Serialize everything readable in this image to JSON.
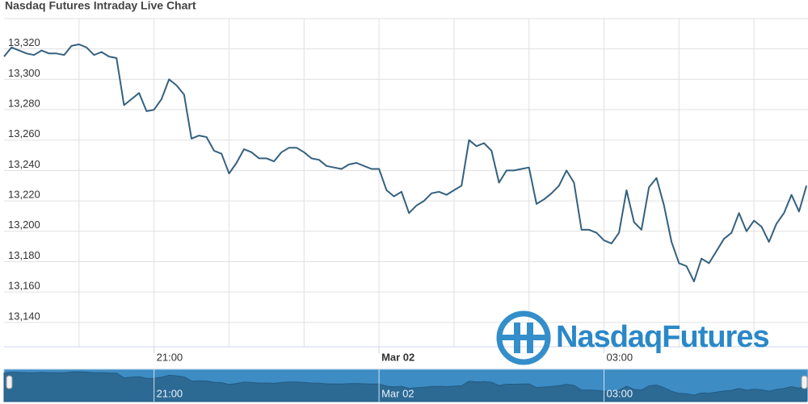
{
  "chart_data": {
    "type": "line",
    "title": "Nasdaq Futures Intraday Live Chart",
    "watermark": "NasdaqFutures",
    "x": [
      19.0,
      19.1,
      19.2,
      19.3,
      19.4,
      19.5,
      19.6,
      19.7,
      19.8,
      19.9,
      20.0,
      20.1,
      20.2,
      20.3,
      20.4,
      20.5,
      20.6,
      20.7,
      20.8,
      20.9,
      21.0,
      21.1,
      21.2,
      21.3,
      21.4,
      21.5,
      21.6,
      21.7,
      21.8,
      21.9,
      22.0,
      22.1,
      22.2,
      22.3,
      22.4,
      22.5,
      22.6,
      22.7,
      22.8,
      22.9,
      23.0,
      23.1,
      23.2,
      23.3,
      23.4,
      23.5,
      23.6,
      23.7,
      23.8,
      23.9,
      24.0,
      24.1,
      24.2,
      24.3,
      24.4,
      24.5,
      24.6,
      24.7,
      24.8,
      24.9,
      25.0,
      25.1,
      25.2,
      25.3,
      25.4,
      25.5,
      25.6,
      25.7,
      25.8,
      25.9,
      26.0,
      26.1,
      26.2,
      26.3,
      26.4,
      26.5,
      26.6,
      26.7,
      26.8,
      26.9,
      27.0,
      27.1,
      27.2,
      27.3,
      27.4,
      27.5,
      27.6,
      27.7,
      27.8,
      27.9,
      28.0,
      28.1,
      28.2,
      28.3,
      28.4,
      28.5,
      28.6,
      28.7,
      28.8,
      28.9,
      29.0,
      29.1,
      29.2,
      29.3,
      29.4,
      29.5,
      29.6,
      29.7
    ],
    "series": [
      {
        "name": "Nasdaq Futures",
        "color": "#34617f",
        "values": [
          13315,
          13321,
          13319,
          13317,
          13316,
          13319,
          13317,
          13317,
          13316,
          13322,
          13323,
          13321,
          13316,
          13318,
          13315,
          13314,
          13283,
          13287,
          13291,
          13279,
          13280,
          13287,
          13300,
          13296,
          13290,
          13261,
          13263,
          13262,
          13253,
          13251,
          13238,
          13245,
          13254,
          13252,
          13248,
          13248,
          13246,
          13252,
          13255,
          13255,
          13252,
          13248,
          13247,
          13243,
          13242,
          13241,
          13244,
          13245,
          13243,
          13241,
          13241,
          13227,
          13223,
          13226,
          13212,
          13217,
          13220,
          13225,
          13226,
          13224,
          13227,
          13230,
          13260,
          13256,
          13258,
          13253,
          13232,
          13240,
          13240,
          13241,
          13242,
          13218,
          13221,
          13225,
          13230,
          13240,
          13232,
          13201,
          13201,
          13199,
          13194,
          13192,
          13199,
          13227,
          13206,
          13201,
          13229,
          13235,
          13217,
          13193,
          13179,
          13177,
          13167,
          13182,
          13179,
          13187,
          13195,
          13199,
          13212,
          13200,
          13207,
          13203,
          13193,
          13205,
          13212,
          13224,
          13213,
          13230
        ]
      }
    ],
    "xlim": [
      19.0,
      29.72
    ],
    "xticks": [
      {
        "value": 21,
        "label": "21:00"
      },
      {
        "value": 24,
        "label": "Mar 02"
      },
      {
        "value": 27,
        "label": "03:00"
      }
    ],
    "minor_xticks": [
      20,
      22,
      23,
      25,
      26,
      28,
      29
    ],
    "ylim": [
      13124,
      13340
    ],
    "yticks": [
      {
        "value": 13140,
        "label": "13,140"
      },
      {
        "value": 13160,
        "label": "13,160"
      },
      {
        "value": 13180,
        "label": "13,180"
      },
      {
        "value": 13200,
        "label": "13,200"
      },
      {
        "value": 13220,
        "label": "13,220"
      },
      {
        "value": 13240,
        "label": "13,240"
      },
      {
        "value": 13260,
        "label": "13,260"
      },
      {
        "value": 13280,
        "label": "13,280"
      },
      {
        "value": 13300,
        "label": "13,300"
      },
      {
        "value": 13320,
        "label": "13,320"
      }
    ],
    "grid": true,
    "navigator": true
  }
}
